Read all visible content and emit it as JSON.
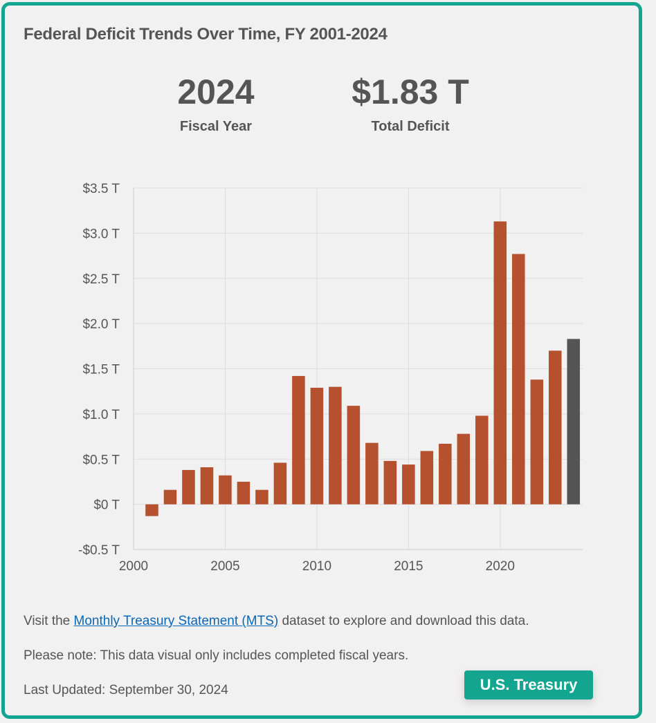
{
  "header": {
    "title": "Federal Deficit Trends Over Time, FY 2001-2024"
  },
  "summary": {
    "year_value": "2024",
    "year_label": "Fiscal Year",
    "deficit_value": "$1.83 T",
    "deficit_label": "Total Deficit"
  },
  "chart_data": {
    "type": "bar",
    "title": "",
    "xlabel": "",
    "ylabel": "",
    "x": [
      2001,
      2002,
      2003,
      2004,
      2005,
      2006,
      2007,
      2008,
      2009,
      2010,
      2011,
      2012,
      2013,
      2014,
      2015,
      2016,
      2017,
      2018,
      2019,
      2020,
      2021,
      2022,
      2023,
      2024
    ],
    "values": [
      -0.13,
      0.16,
      0.38,
      0.41,
      0.32,
      0.25,
      0.16,
      0.46,
      1.42,
      1.29,
      1.3,
      1.09,
      0.68,
      0.48,
      0.44,
      0.59,
      0.67,
      0.78,
      0.98,
      3.13,
      2.77,
      1.38,
      1.7,
      1.83
    ],
    "ylim": [
      -0.5,
      3.5
    ],
    "xlim": [
      2000,
      2024.5
    ],
    "y_ticks": [
      -0.5,
      0,
      0.5,
      1.0,
      1.5,
      2.0,
      2.5,
      3.0,
      3.5
    ],
    "y_tick_labels": [
      "-$0.5 T",
      "$0 T",
      "$0.5 T",
      "$1.0 T",
      "$1.5 T",
      "$2.0 T",
      "$2.5 T",
      "$3.0 T",
      "$3.5 T"
    ],
    "x_ticks": [
      2000,
      2005,
      2010,
      2015,
      2020
    ],
    "x_tick_labels": [
      "2000",
      "2005",
      "2010",
      "2015",
      "2020"
    ],
    "grid": true,
    "highlighted": 2024,
    "colors": {
      "bar": "#b5512e",
      "highlight": "#555555",
      "grid": "#dddddd"
    }
  },
  "footer": {
    "note_prefix": "Visit the ",
    "link_text": "Monthly Treasury Statement (MTS)",
    "note_suffix": " dataset to explore and download this data.",
    "note2": "Please note: This data visual only includes completed fiscal years.",
    "last_updated": "Last Updated: September 30, 2024",
    "badge": "U.S. Treasury"
  }
}
